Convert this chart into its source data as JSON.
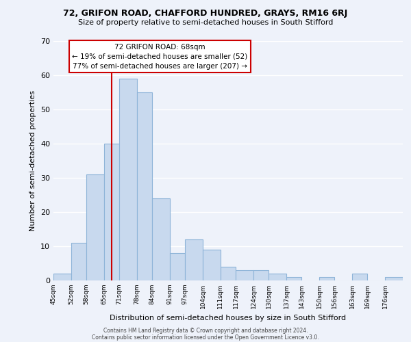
{
  "title1": "72, GRIFON ROAD, CHAFFORD HUNDRED, GRAYS, RM16 6RJ",
  "title2": "Size of property relative to semi-detached houses in South Stifford",
  "xlabel": "Distribution of semi-detached houses by size in South Stifford",
  "ylabel": "Number of semi-detached properties",
  "footnote1": "Contains HM Land Registry data © Crown copyright and database right 2024.",
  "footnote2": "Contains public sector information licensed under the Open Government Licence v3.0.",
  "bar_labels": [
    "45sqm",
    "52sqm",
    "58sqm",
    "65sqm",
    "71sqm",
    "78sqm",
    "84sqm",
    "91sqm",
    "97sqm",
    "104sqm",
    "111sqm",
    "117sqm",
    "124sqm",
    "130sqm",
    "137sqm",
    "143sqm",
    "150sqm",
    "156sqm",
    "163sqm",
    "169sqm",
    "176sqm"
  ],
  "bar_values": [
    2,
    11,
    31,
    40,
    59,
    55,
    24,
    8,
    12,
    9,
    4,
    3,
    3,
    2,
    1,
    0,
    1,
    0,
    2,
    0,
    1
  ],
  "bar_color": "#c8d9ee",
  "bar_edge_color": "#8eb4d8",
  "annotation_line1": "72 GRIFON ROAD: 68sqm",
  "annotation_line2": "← 19% of semi-detached houses are smaller (52)",
  "annotation_line3": "77% of semi-detached houses are larger (207) →",
  "vline_x": 68,
  "vline_color": "#cc0000",
  "annotation_box_color": "#ffffff",
  "annotation_box_edge": "#cc0000",
  "ylim": [
    0,
    70
  ],
  "yticks": [
    0,
    10,
    20,
    30,
    40,
    50,
    60,
    70
  ],
  "bin_edges": [
    45,
    52,
    58,
    65,
    71,
    78,
    84,
    91,
    97,
    104,
    111,
    117,
    124,
    130,
    137,
    143,
    150,
    156,
    163,
    169,
    176,
    183
  ],
  "background_color": "#eef2fa"
}
